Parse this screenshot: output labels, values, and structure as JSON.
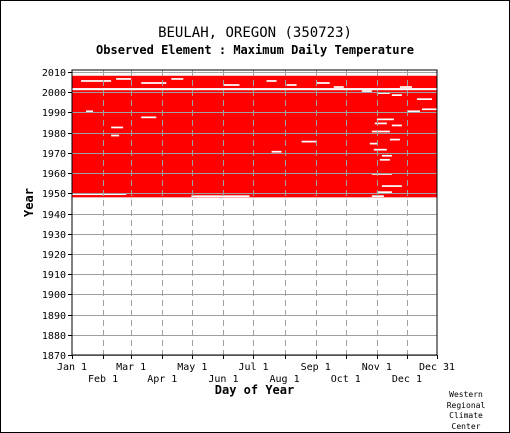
{
  "chart_data": {
    "type": "heatmap",
    "title": "BEULAH, OREGON   (350723)",
    "subtitle": "Observed Element : Maximum Daily Temperature",
    "xlabel": "Day of Year",
    "ylabel": "Year",
    "xlim": [
      1,
      365
    ],
    "ylim": [
      1870,
      2011
    ],
    "y_ticks": [
      1870,
      1880,
      1890,
      1900,
      1910,
      1920,
      1930,
      1940,
      1950,
      1960,
      1970,
      1980,
      1990,
      2000,
      2010
    ],
    "x_ticks_top": [
      {
        "label": "Jan 1",
        "day": 1
      },
      {
        "label": "Mar 1",
        "day": 60
      },
      {
        "label": "May 1",
        "day": 121
      },
      {
        "label": "Jul 1",
        "day": 182
      },
      {
        "label": "Sep 1",
        "day": 244
      },
      {
        "label": "Nov 1",
        "day": 305
      },
      {
        "label": "Dec 31",
        "day": 365
      }
    ],
    "x_ticks_bottom": [
      {
        "label": "Feb 1",
        "day": 32
      },
      {
        "label": "Apr 1",
        "day": 91
      },
      {
        "label": "Jun 1",
        "day": 152
      },
      {
        "label": "Aug 1",
        "day": 213
      },
      {
        "label": "Oct 1",
        "day": 274
      },
      {
        "label": "Dec 1",
        "day": 335
      }
    ],
    "data_color": "#ff0000",
    "grid": true,
    "records_start_year": 1948,
    "records_end_year": 2008,
    "data_blocks": [
      {
        "day_start": 1,
        "day_end": 365,
        "year_start": 1948,
        "year_end": 2000
      },
      {
        "day_start": 1,
        "day_end": 365,
        "year_start": 2002,
        "year_end": 2008
      }
    ],
    "missing_segments": [
      {
        "day_start": 1,
        "day_end": 365,
        "year": 2001
      },
      {
        "day_start": 1,
        "day_end": 365,
        "year": 2008
      },
      {
        "day_start": 1,
        "day_end": 55,
        "year": 1949
      },
      {
        "day_start": 120,
        "day_end": 178,
        "year": 1948
      },
      {
        "day_start": 300,
        "day_end": 312,
        "year": 1948
      },
      {
        "day_start": 10,
        "day_end": 40,
        "year": 2005
      },
      {
        "day_start": 45,
        "day_end": 60,
        "year": 2006
      },
      {
        "day_start": 70,
        "day_end": 95,
        "year": 2004
      },
      {
        "day_start": 100,
        "day_end": 112,
        "year": 2006
      },
      {
        "day_start": 152,
        "day_end": 168,
        "year": 2003
      },
      {
        "day_start": 195,
        "day_end": 205,
        "year": 2005
      },
      {
        "day_start": 215,
        "day_end": 225,
        "year": 2003
      },
      {
        "day_start": 245,
        "day_end": 258,
        "year": 2004
      },
      {
        "day_start": 262,
        "day_end": 272,
        "year": 2002
      },
      {
        "day_start": 290,
        "day_end": 300,
        "year": 2000
      },
      {
        "day_start": 305,
        "day_end": 318,
        "year": 1999
      },
      {
        "day_start": 320,
        "day_end": 330,
        "year": 1998
      },
      {
        "day_start": 328,
        "day_end": 340,
        "year": 2002
      },
      {
        "day_start": 345,
        "day_end": 360,
        "year": 1996
      },
      {
        "day_start": 350,
        "day_end": 365,
        "year": 1991
      },
      {
        "day_start": 335,
        "day_end": 348,
        "year": 1990
      },
      {
        "day_start": 305,
        "day_end": 322,
        "year": 1986
      },
      {
        "day_start": 303,
        "day_end": 315,
        "year": 1984
      },
      {
        "day_start": 320,
        "day_end": 330,
        "year": 1983
      },
      {
        "day_start": 300,
        "day_end": 318,
        "year": 1980
      },
      {
        "day_start": 318,
        "day_end": 328,
        "year": 1976
      },
      {
        "day_start": 298,
        "day_end": 306,
        "year": 1974
      },
      {
        "day_start": 302,
        "day_end": 315,
        "year": 1971
      },
      {
        "day_start": 310,
        "day_end": 320,
        "year": 1968
      },
      {
        "day_start": 308,
        "day_end": 318,
        "year": 1966
      },
      {
        "day_start": 300,
        "day_end": 320,
        "year": 1959
      },
      {
        "day_start": 310,
        "day_end": 330,
        "year": 1953
      },
      {
        "day_start": 305,
        "day_end": 320,
        "year": 1950
      },
      {
        "day_start": 40,
        "day_end": 48,
        "year": 1978
      },
      {
        "day_start": 40,
        "day_end": 52,
        "year": 1982
      },
      {
        "day_start": 70,
        "day_end": 85,
        "year": 1987
      },
      {
        "day_start": 200,
        "day_end": 210,
        "year": 1970
      },
      {
        "day_start": 15,
        "day_end": 22,
        "year": 1990
      },
      {
        "day_start": 230,
        "day_end": 245,
        "year": 1975
      }
    ]
  },
  "credit": [
    "Western",
    "Regional",
    "Climate",
    "Center"
  ]
}
